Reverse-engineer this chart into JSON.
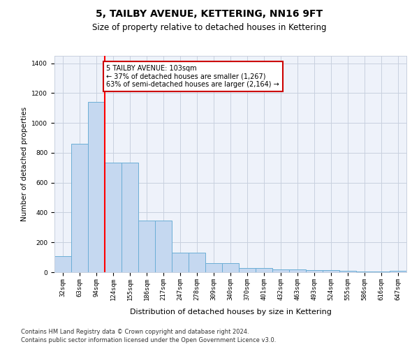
{
  "title": "5, TAILBY AVENUE, KETTERING, NN16 9FT",
  "subtitle": "Size of property relative to detached houses in Kettering",
  "xlabel": "Distribution of detached houses by size in Kettering",
  "ylabel": "Number of detached properties",
  "categories": [
    "32sqm",
    "63sqm",
    "94sqm",
    "124sqm",
    "155sqm",
    "186sqm",
    "217sqm",
    "247sqm",
    "278sqm",
    "309sqm",
    "340sqm",
    "370sqm",
    "401sqm",
    "432sqm",
    "463sqm",
    "493sqm",
    "524sqm",
    "555sqm",
    "586sqm",
    "616sqm",
    "647sqm"
  ],
  "values": [
    107,
    860,
    1140,
    735,
    735,
    345,
    345,
    130,
    130,
    62,
    62,
    28,
    28,
    20,
    20,
    12,
    12,
    8,
    5,
    3,
    10
  ],
  "bar_color": "#c5d8f0",
  "bar_edge_color": "#6baed6",
  "red_line_x": 2.5,
  "annotation_text": "5 TAILBY AVENUE: 103sqm\n← 37% of detached houses are smaller (1,267)\n63% of semi-detached houses are larger (2,164) →",
  "annotation_box_color": "#ffffff",
  "annotation_box_edge_color": "#cc0000",
  "ylim": [
    0,
    1450
  ],
  "yticks": [
    0,
    200,
    400,
    600,
    800,
    1000,
    1200,
    1400
  ],
  "footer_line1": "Contains HM Land Registry data © Crown copyright and database right 2024.",
  "footer_line2": "Contains public sector information licensed under the Open Government Licence v3.0.",
  "bg_color": "#eef2fa",
  "grid_color": "#c8d0df",
  "title_fontsize": 10,
  "subtitle_fontsize": 8.5,
  "xlabel_fontsize": 8,
  "ylabel_fontsize": 7.5,
  "tick_fontsize": 6.5,
  "annotation_fontsize": 7,
  "footer_fontsize": 6
}
